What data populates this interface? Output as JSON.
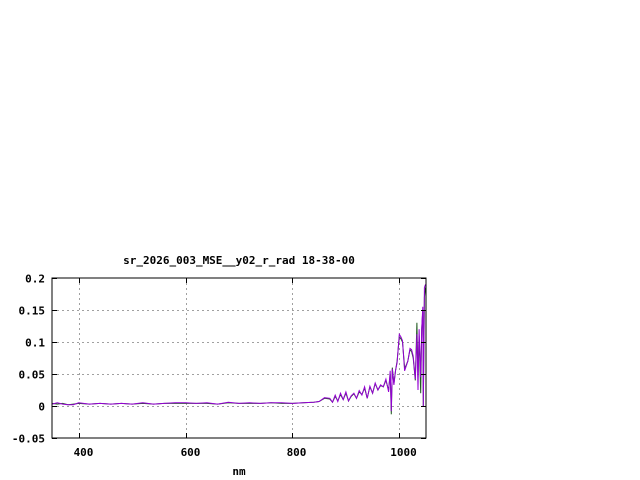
{
  "chart_data": {
    "type": "line",
    "title": "sr_2026_003_MSE__y02_r_rad 18-38-00",
    "xlabel": "nm",
    "ylabel": "",
    "xlim": [
      350,
      1050
    ],
    "ylim": [
      -0.05,
      0.2
    ],
    "xticks": [
      400,
      600,
      800,
      1000
    ],
    "xtick_labels": [
      "400",
      "600",
      "800",
      "1000"
    ],
    "yticks": [
      -0.05,
      0,
      0.05,
      0.1,
      0.15,
      0.2
    ],
    "ytick_labels": [
      "-0.05",
      "0",
      "0.05",
      "0.1",
      "0.15",
      "0.2"
    ],
    "grid": true,
    "legend": "none",
    "colors": [
      "#1f5a1f",
      "#9400d3"
    ],
    "series": [
      {
        "x": [
          350,
          360,
          370,
          380,
          390,
          400,
          420,
          440,
          460,
          480,
          500,
          520,
          540,
          560,
          580,
          600,
          620,
          640,
          660,
          680,
          700,
          720,
          740,
          760,
          780,
          800,
          820,
          840,
          850,
          860,
          870,
          875,
          880,
          885,
          890,
          895,
          900,
          905,
          910,
          915,
          920,
          925,
          930,
          935,
          940,
          945,
          950,
          955,
          960,
          965,
          970,
          975,
          980,
          983,
          985,
          987,
          990,
          993,
          996,
          1000,
          1003,
          1006,
          1010,
          1012,
          1016,
          1020,
          1023,
          1026,
          1030,
          1033,
          1035,
          1037,
          1040,
          1042,
          1044,
          1045,
          1047,
          1049
        ],
        "y": [
          0.004,
          0.003,
          0.004,
          0.002,
          0.003,
          0.004,
          0.003,
          0.004,
          0.003,
          0.004,
          0.003,
          0.004,
          0.003,
          0.004,
          0.004,
          0.004,
          0.004,
          0.004,
          0.003,
          0.005,
          0.004,
          0.004,
          0.004,
          0.005,
          0.004,
          0.004,
          0.005,
          0.006,
          0.007,
          0.012,
          0.011,
          0.006,
          0.015,
          0.008,
          0.018,
          0.01,
          0.02,
          0.008,
          0.015,
          0.019,
          0.012,
          0.022,
          0.018,
          0.028,
          0.012,
          0.03,
          0.02,
          0.035,
          0.025,
          0.032,
          0.03,
          0.04,
          0.025,
          0.05,
          -0.013,
          0.06,
          0.035,
          0.055,
          0.07,
          0.108,
          0.105,
          0.1,
          0.06,
          0.062,
          0.07,
          0.088,
          0.085,
          0.075,
          0.04,
          0.13,
          0.045,
          0.11,
          0.02,
          0.12,
          0.15,
          0.0,
          0.17,
          0.185
        ]
      },
      {
        "x": [
          350,
          360,
          370,
          380,
          390,
          400,
          420,
          440,
          460,
          480,
          500,
          520,
          540,
          560,
          580,
          600,
          620,
          640,
          660,
          680,
          700,
          720,
          740,
          760,
          780,
          800,
          820,
          840,
          850,
          860,
          870,
          875,
          880,
          885,
          890,
          895,
          900,
          905,
          910,
          915,
          920,
          925,
          930,
          935,
          940,
          945,
          950,
          955,
          960,
          965,
          970,
          975,
          980,
          983,
          985,
          987,
          990,
          993,
          996,
          1000,
          1003,
          1006,
          1010,
          1012,
          1016,
          1020,
          1023,
          1026,
          1030,
          1033,
          1035,
          1037,
          1040,
          1042,
          1044,
          1045,
          1047,
          1049
        ],
        "y": [
          0.003,
          0.005,
          0.003,
          0.002,
          0.002,
          0.005,
          0.003,
          0.004,
          0.003,
          0.004,
          0.003,
          0.005,
          0.003,
          0.004,
          0.005,
          0.005,
          0.004,
          0.005,
          0.003,
          0.006,
          0.004,
          0.005,
          0.004,
          0.005,
          0.005,
          0.004,
          0.005,
          0.006,
          0.007,
          0.013,
          0.012,
          0.006,
          0.017,
          0.007,
          0.02,
          0.01,
          0.022,
          0.008,
          0.016,
          0.02,
          0.012,
          0.024,
          0.017,
          0.03,
          0.012,
          0.031,
          0.02,
          0.036,
          0.025,
          0.033,
          0.03,
          0.042,
          0.022,
          0.055,
          -0.008,
          0.058,
          0.033,
          0.055,
          0.068,
          0.112,
          0.108,
          0.102,
          0.055,
          0.06,
          0.07,
          0.09,
          0.088,
          0.078,
          0.042,
          0.112,
          0.025,
          0.12,
          0.045,
          0.12,
          0.155,
          0.0,
          0.185,
          0.19
        ]
      }
    ]
  }
}
